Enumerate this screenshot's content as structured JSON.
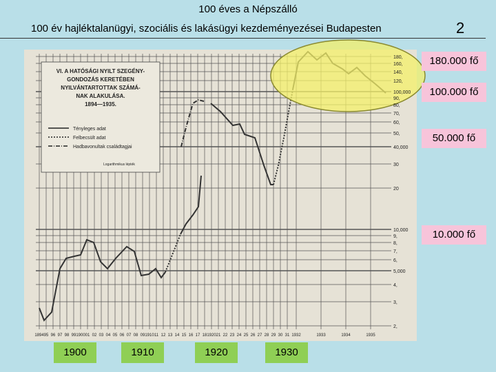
{
  "header": {
    "title": "100 éves a Népszálló",
    "subtitle": "100 év hajléktalanügyi, szociális és lakásügyi kezdeményezései Budapesten",
    "page_number": "2"
  },
  "scan": {
    "title_lines": [
      "VI. A HATÓSÁGI NYILT SZEGÉNY-",
      "GONDOZÁS KERETÉBEN",
      "NYILVÁNTARTOTTAK SZÁMÁ-",
      "NAK ALAKULÁSA.",
      "1894—1935."
    ],
    "legend": [
      "Tényleges adat",
      "Felbecsült adat",
      "Hadbavonultak családtagjai"
    ],
    "scale_note": "Logarithmikus lépték",
    "right_axis_labels": [
      "180,",
      "160,",
      "140,",
      "120,",
      "100,000",
      "90,",
      "80,",
      "70,",
      "60,",
      "50,",
      "40,000",
      "30",
      "20",
      "10,000",
      "9,",
      "8,",
      "7,",
      "6,",
      "5,000",
      "4,",
      "3,",
      "2,"
    ],
    "x_axis_labels": [
      "1894",
      "95",
      "96",
      "97",
      "98",
      "99",
      "1900",
      "01",
      "02",
      "03",
      "04",
      "05",
      "06",
      "07",
      "08",
      "09",
      "1910",
      "11",
      "12",
      "13",
      "14",
      "15",
      "16",
      "17",
      "18",
      "1920",
      "21",
      "22",
      "23",
      "24",
      "25",
      "26",
      "27",
      "28",
      "29",
      "30",
      "31",
      "1932",
      "1933",
      "1934",
      "1935"
    ]
  },
  "callouts": [
    "180.000 fő",
    "100.000 fő",
    "50.000 fő",
    "10.000 fő"
  ],
  "year_boxes": [
    "1900",
    "1910",
    "1920",
    "1930"
  ]
}
